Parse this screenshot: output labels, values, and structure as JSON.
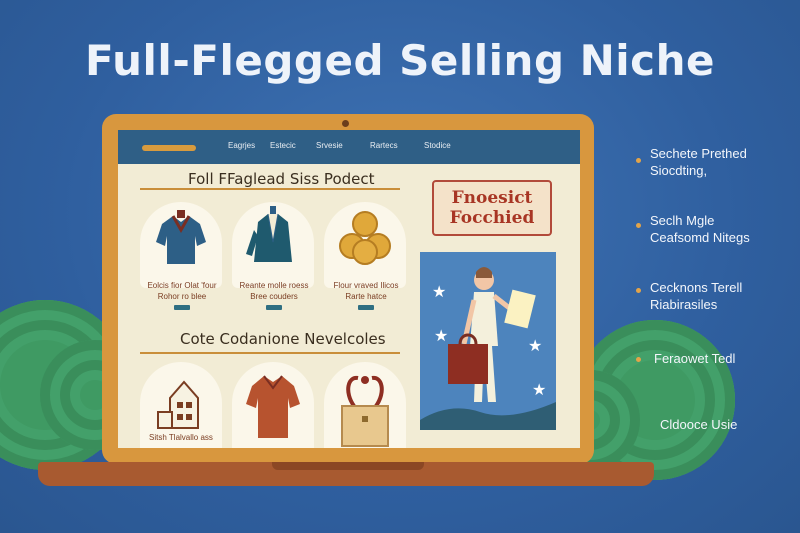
{
  "headline": "Full-Flegged Selling Niche",
  "laptop": {
    "nav_items": [
      "Eagrjes",
      "Estecic",
      "Srvesie",
      "Rartecs",
      "Stodice"
    ],
    "section1_title": "Foll FFaglead Siss Podect",
    "products": [
      {
        "line1": "Eolcis fior Olat 'four",
        "line2": "Rohor ro blee"
      },
      {
        "line1": "Reante molle roess",
        "line2": "Bree couders"
      },
      {
        "line1": "Flour vraved Ilicos",
        "line2": "Rarte hatce"
      }
    ],
    "section2_title": "Cote Codanione Nevelcoles",
    "section2_caption": "Sitsh Tlalvallo ass",
    "badge_line1": "Fnoesict",
    "badge_line2": "Focchied"
  },
  "side_list": [
    {
      "line1": "Sechete Prethed",
      "line2": "Siocdting,"
    },
    {
      "line1": "Seclh Mgle",
      "line2": "Ceafsomd Nitegs"
    },
    {
      "line1": "Cecknons Terell",
      "line2": "Riabirasiles"
    },
    {
      "line1": "Feraowet Tedl",
      "line2": ""
    },
    {
      "line1": "Cldooce Usie",
      "line2": ""
    }
  ],
  "colors": {
    "background": "#2f5f9f",
    "laptop_frame": "#d8973e",
    "nav_bar": "#2f5f86",
    "accent": "#e3a449",
    "badge_text": "#a83524"
  }
}
